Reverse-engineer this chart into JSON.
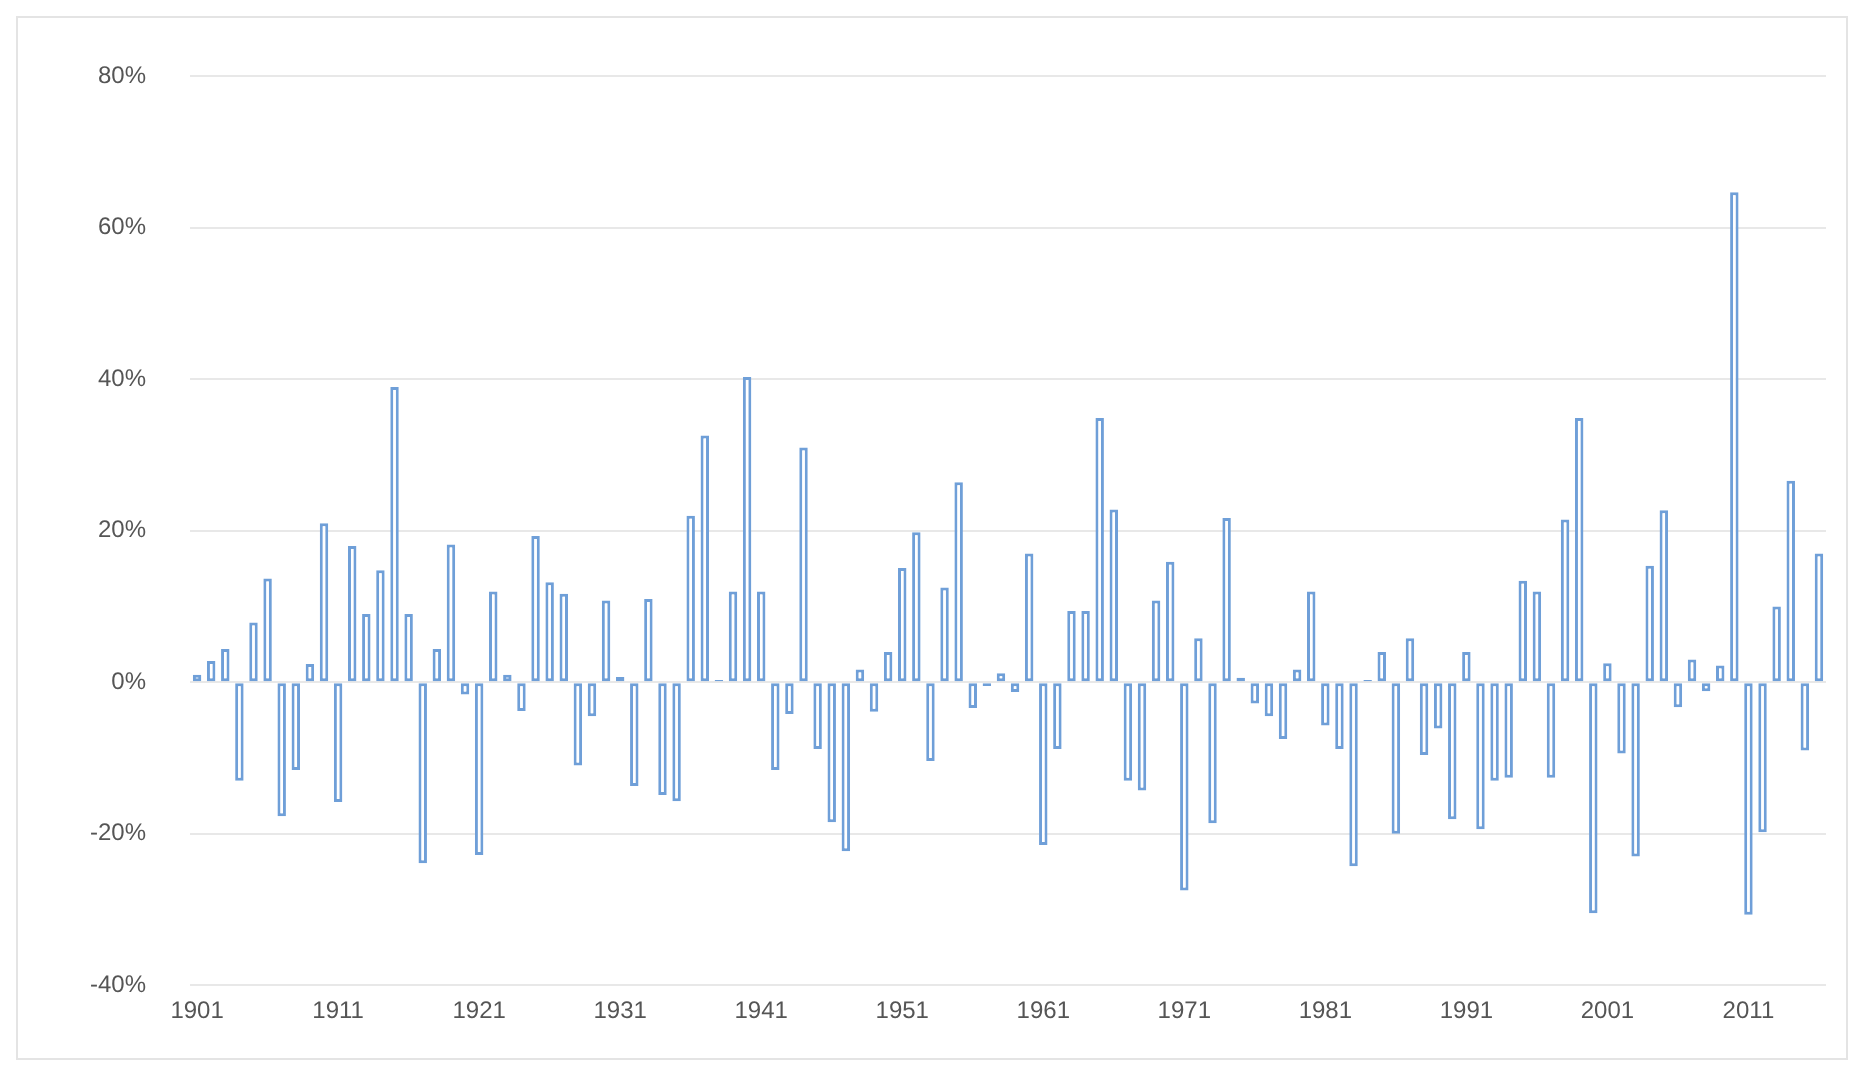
{
  "chart_data": {
    "type": "bar",
    "categories": [
      "1901",
      null,
      null,
      null,
      null,
      null,
      null,
      null,
      null,
      null,
      "1911",
      null,
      null,
      null,
      null,
      null,
      null,
      null,
      null,
      null,
      "1921",
      null,
      null,
      null,
      null,
      null,
      null,
      null,
      null,
      null,
      "1931",
      null,
      null,
      null,
      null,
      null,
      null,
      null,
      null,
      null,
      "1941",
      null,
      null,
      null,
      null,
      null,
      null,
      null,
      null,
      null,
      "1951",
      null,
      null,
      null,
      null,
      null,
      null,
      null,
      null,
      null,
      "1961",
      null,
      null,
      null,
      null,
      null,
      null,
      null,
      null,
      null,
      "1971",
      null,
      null,
      null,
      null,
      null,
      null,
      null,
      null,
      null,
      "1981",
      null,
      null,
      null,
      null,
      null,
      null,
      null,
      null,
      null,
      "1991",
      null,
      null,
      null,
      null,
      null,
      null,
      null,
      null,
      null,
      "2001",
      null,
      null,
      null,
      null,
      null,
      null,
      null,
      null,
      null,
      "2011",
      null,
      null,
      null,
      null,
      null
    ],
    "values": [
      1,
      2.8,
      4.4,
      -13,
      7.9,
      13.7,
      -17.7,
      -11.6,
      2.4,
      21,
      -15.8,
      18,
      9,
      14.8,
      39,
      9,
      -23.9,
      4.4,
      18.2,
      -1.6,
      -22.8,
      12,
      1,
      -3.8,
      19.3,
      13.2,
      11.7,
      -11,
      -4.5,
      10.8,
      0.7,
      -13.7,
      11,
      -14.9,
      -15.7,
      22,
      32.6,
      0.3,
      12,
      40.3,
      12,
      -11.6,
      -4.2,
      31,
      -8.8,
      -18.5,
      -22.3,
      1.7,
      -3.9,
      4,
      15.1,
      19.8,
      -10.4,
      12.5,
      26.4,
      -3.4,
      -0.5,
      1.2,
      -1.3,
      17,
      -21.5,
      -8.8,
      9.4,
      9.4,
      34.9,
      22.8,
      -13,
      -14.3,
      10.8,
      15.9,
      -27.5,
      5.8,
      -18.6,
      21.7,
      0.6,
      -2.8,
      -4.5,
      -7.5,
      1.7,
      12,
      -5.7,
      -8.8,
      -24.3,
      0.3,
      4,
      -20,
      5.8,
      -9.6,
      -6.1,
      -18.1,
      4,
      -19.4,
      -13,
      -12.6,
      13.4,
      12,
      -12.6,
      21.5,
      34.9,
      -30.5,
      2.5,
      -9.4,
      -23,
      15.4,
      22.7,
      -3.3,
      3,
      -1.2,
      2.2,
      64.7,
      -30.7,
      -19.8,
      10,
      26.6,
      -9,
      17
    ],
    "color": "#6f9fd8",
    "ylim": [
      -40,
      80
    ],
    "yticks": [
      {
        "value": -40,
        "label": "-40%"
      },
      {
        "value": -20,
        "label": "-20%"
      },
      {
        "value": 0,
        "label": "0%"
      },
      {
        "value": 20,
        "label": "20%"
      },
      {
        "value": 40,
        "label": "40%"
      },
      {
        "value": 60,
        "label": "60%"
      },
      {
        "value": 80,
        "label": "80%"
      }
    ],
    "grid": "y"
  }
}
